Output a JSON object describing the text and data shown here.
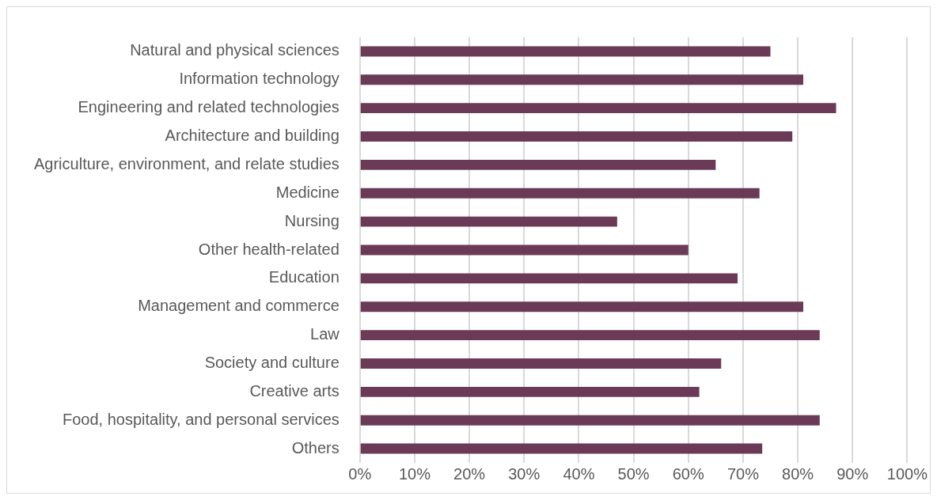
{
  "chart_data": {
    "type": "bar",
    "orientation": "horizontal",
    "categories": [
      "Natural and physical sciences",
      "Information technology",
      "Engineering and related technologies",
      "Architecture and building",
      "Agriculture, environment, and relate studies",
      "Medicine",
      "Nursing",
      "Other health-related",
      "Education",
      "Management and commerce",
      "Law",
      "Society and culture",
      "Creative arts",
      "Food, hospitality, and personal services",
      "Others"
    ],
    "values": [
      75,
      81,
      87,
      79,
      65,
      73,
      47,
      60,
      69,
      81,
      84,
      66,
      62,
      84,
      73.5
    ],
    "color": "#6b3a57",
    "xlim": [
      0,
      100
    ],
    "xticks": [
      {
        "value": 0,
        "label": "0%"
      },
      {
        "value": 10,
        "label": "10%"
      },
      {
        "value": 20,
        "label": "20%"
      },
      {
        "value": 30,
        "label": "30%"
      },
      {
        "value": 40,
        "label": "40%"
      },
      {
        "value": 50,
        "label": "50%"
      },
      {
        "value": 60,
        "label": "60%"
      },
      {
        "value": 70,
        "label": "70%"
      },
      {
        "value": 80,
        "label": "80%"
      },
      {
        "value": 90,
        "label": "90%"
      },
      {
        "value": 100,
        "label": "100%"
      }
    ],
    "grid": "x"
  }
}
